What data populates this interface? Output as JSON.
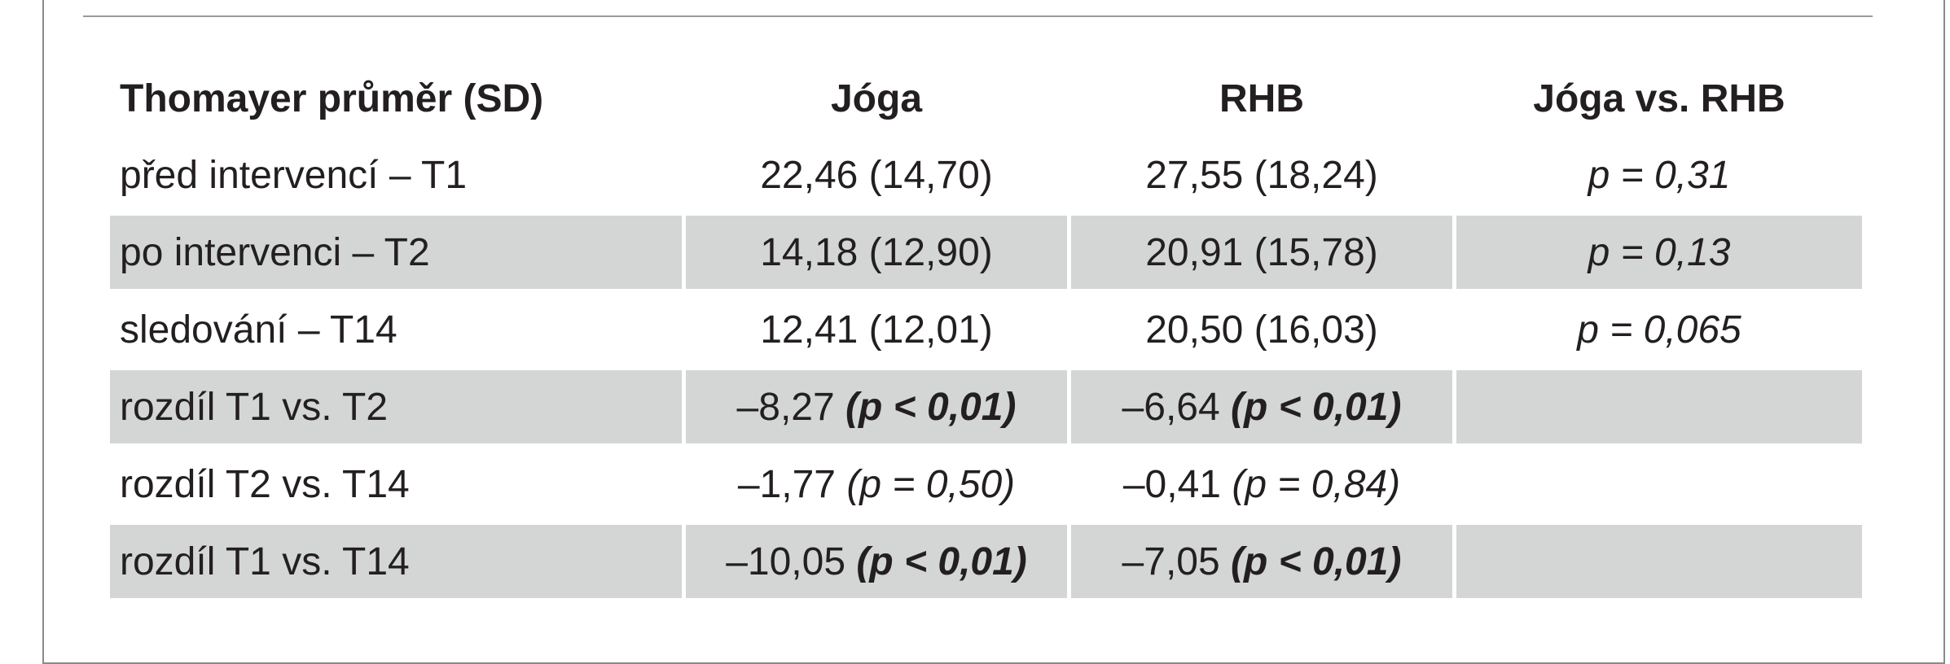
{
  "table": {
    "headers": [
      "Thomayer průměr (SD)",
      "Jóga",
      "RHB",
      "Jóga vs. RHB"
    ],
    "rows": [
      {
        "label": "před intervencí – T1",
        "joga": "22,46 (14,70)",
        "rhb": "27,55 (18,24)",
        "cmp": "p = 0,31",
        "shaded": false
      },
      {
        "label": "po intervenci – T2",
        "joga": "14,18 (12,90)",
        "rhb": "20,91 (15,78)",
        "cmp": "p = 0,13",
        "shaded": true
      },
      {
        "label": "sledování – T14",
        "joga": "12,41 (12,01)",
        "rhb": "20,50 (16,03)",
        "cmp": "p = 0,065",
        "shaded": false
      },
      {
        "label": "rozdíl T1 vs. T2",
        "joga_value": "–8,27",
        "joga_p": "(p < 0,01)",
        "rhb_value": "–6,64",
        "rhb_p": "(p < 0,01)",
        "cmp": "",
        "shaded": true,
        "significant": true
      },
      {
        "label": "rozdíl T2 vs. T14",
        "joga_value": "–1,77",
        "joga_p": "(p = 0,50)",
        "rhb_value": "–0,41",
        "rhb_p": "(p = 0,84)",
        "cmp": "",
        "shaded": false,
        "significant": false
      },
      {
        "label": "rozdíl T1 vs. T14",
        "joga_value": "–10,05",
        "joga_p": "(p < 0,01)",
        "rhb_value": "–7,05",
        "rhb_p": "(p < 0,01)",
        "cmp": "",
        "shaded": true,
        "significant": true
      }
    ]
  },
  "colors": {
    "shade": "#d3d6d5",
    "text": "#231f20",
    "border": "#8a8a8a"
  }
}
